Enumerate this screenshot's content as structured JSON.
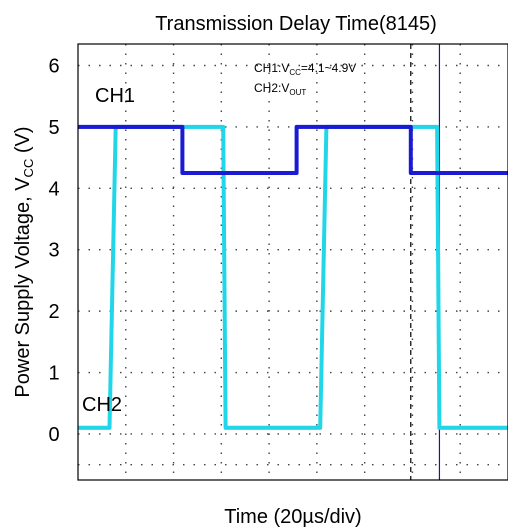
{
  "chart_data": {
    "type": "line",
    "title": "Transmission Delay Time(8145)",
    "xlabel": "Time (20µs/div)",
    "ylabel": {
      "main": "Power Supply Voltage, V",
      "sub": "CC",
      "unit": " (V)"
    },
    "xlim": [
      0,
      180
    ],
    "ylim": [
      -0.75,
      6.35
    ],
    "y_ticks": [
      0,
      1,
      2,
      3,
      4,
      5,
      6
    ],
    "x_grid_divisions": 9,
    "grid": true,
    "channel_labels": {
      "ch1": "CH1",
      "ch2": "CH2"
    },
    "annotation": {
      "line1_pre": "CH1:V",
      "line1_sub": "CC",
      "line1_post": "=4.1~4.9V",
      "line2_pre": "CH2:V",
      "line2_sub": "OUT"
    },
    "series": [
      {
        "name": "CH1",
        "color": "#1b1bd4",
        "x": [
          0,
          43.7,
          43.7,
          91.5,
          91.5,
          139.3,
          139.3,
          180
        ],
        "y": [
          5.0,
          5.0,
          4.25,
          4.25,
          5.0,
          5.0,
          4.25,
          4.25
        ]
      },
      {
        "name": "CH2",
        "color": "#21d6e8",
        "x": [
          0,
          13.2,
          15.8,
          60.8,
          61.8,
          101.4,
          104.0,
          150.3,
          151.3,
          180
        ],
        "y": [
          0.1,
          0.1,
          5.0,
          5.0,
          0.1,
          0.1,
          5.0,
          5.0,
          0.1,
          0.1
        ]
      }
    ],
    "markers": [
      {
        "x": 139.3,
        "style": "dashed",
        "color": "#000000"
      },
      {
        "x": 151.3,
        "style": "solid",
        "color": "#1a1a8a"
      }
    ]
  }
}
